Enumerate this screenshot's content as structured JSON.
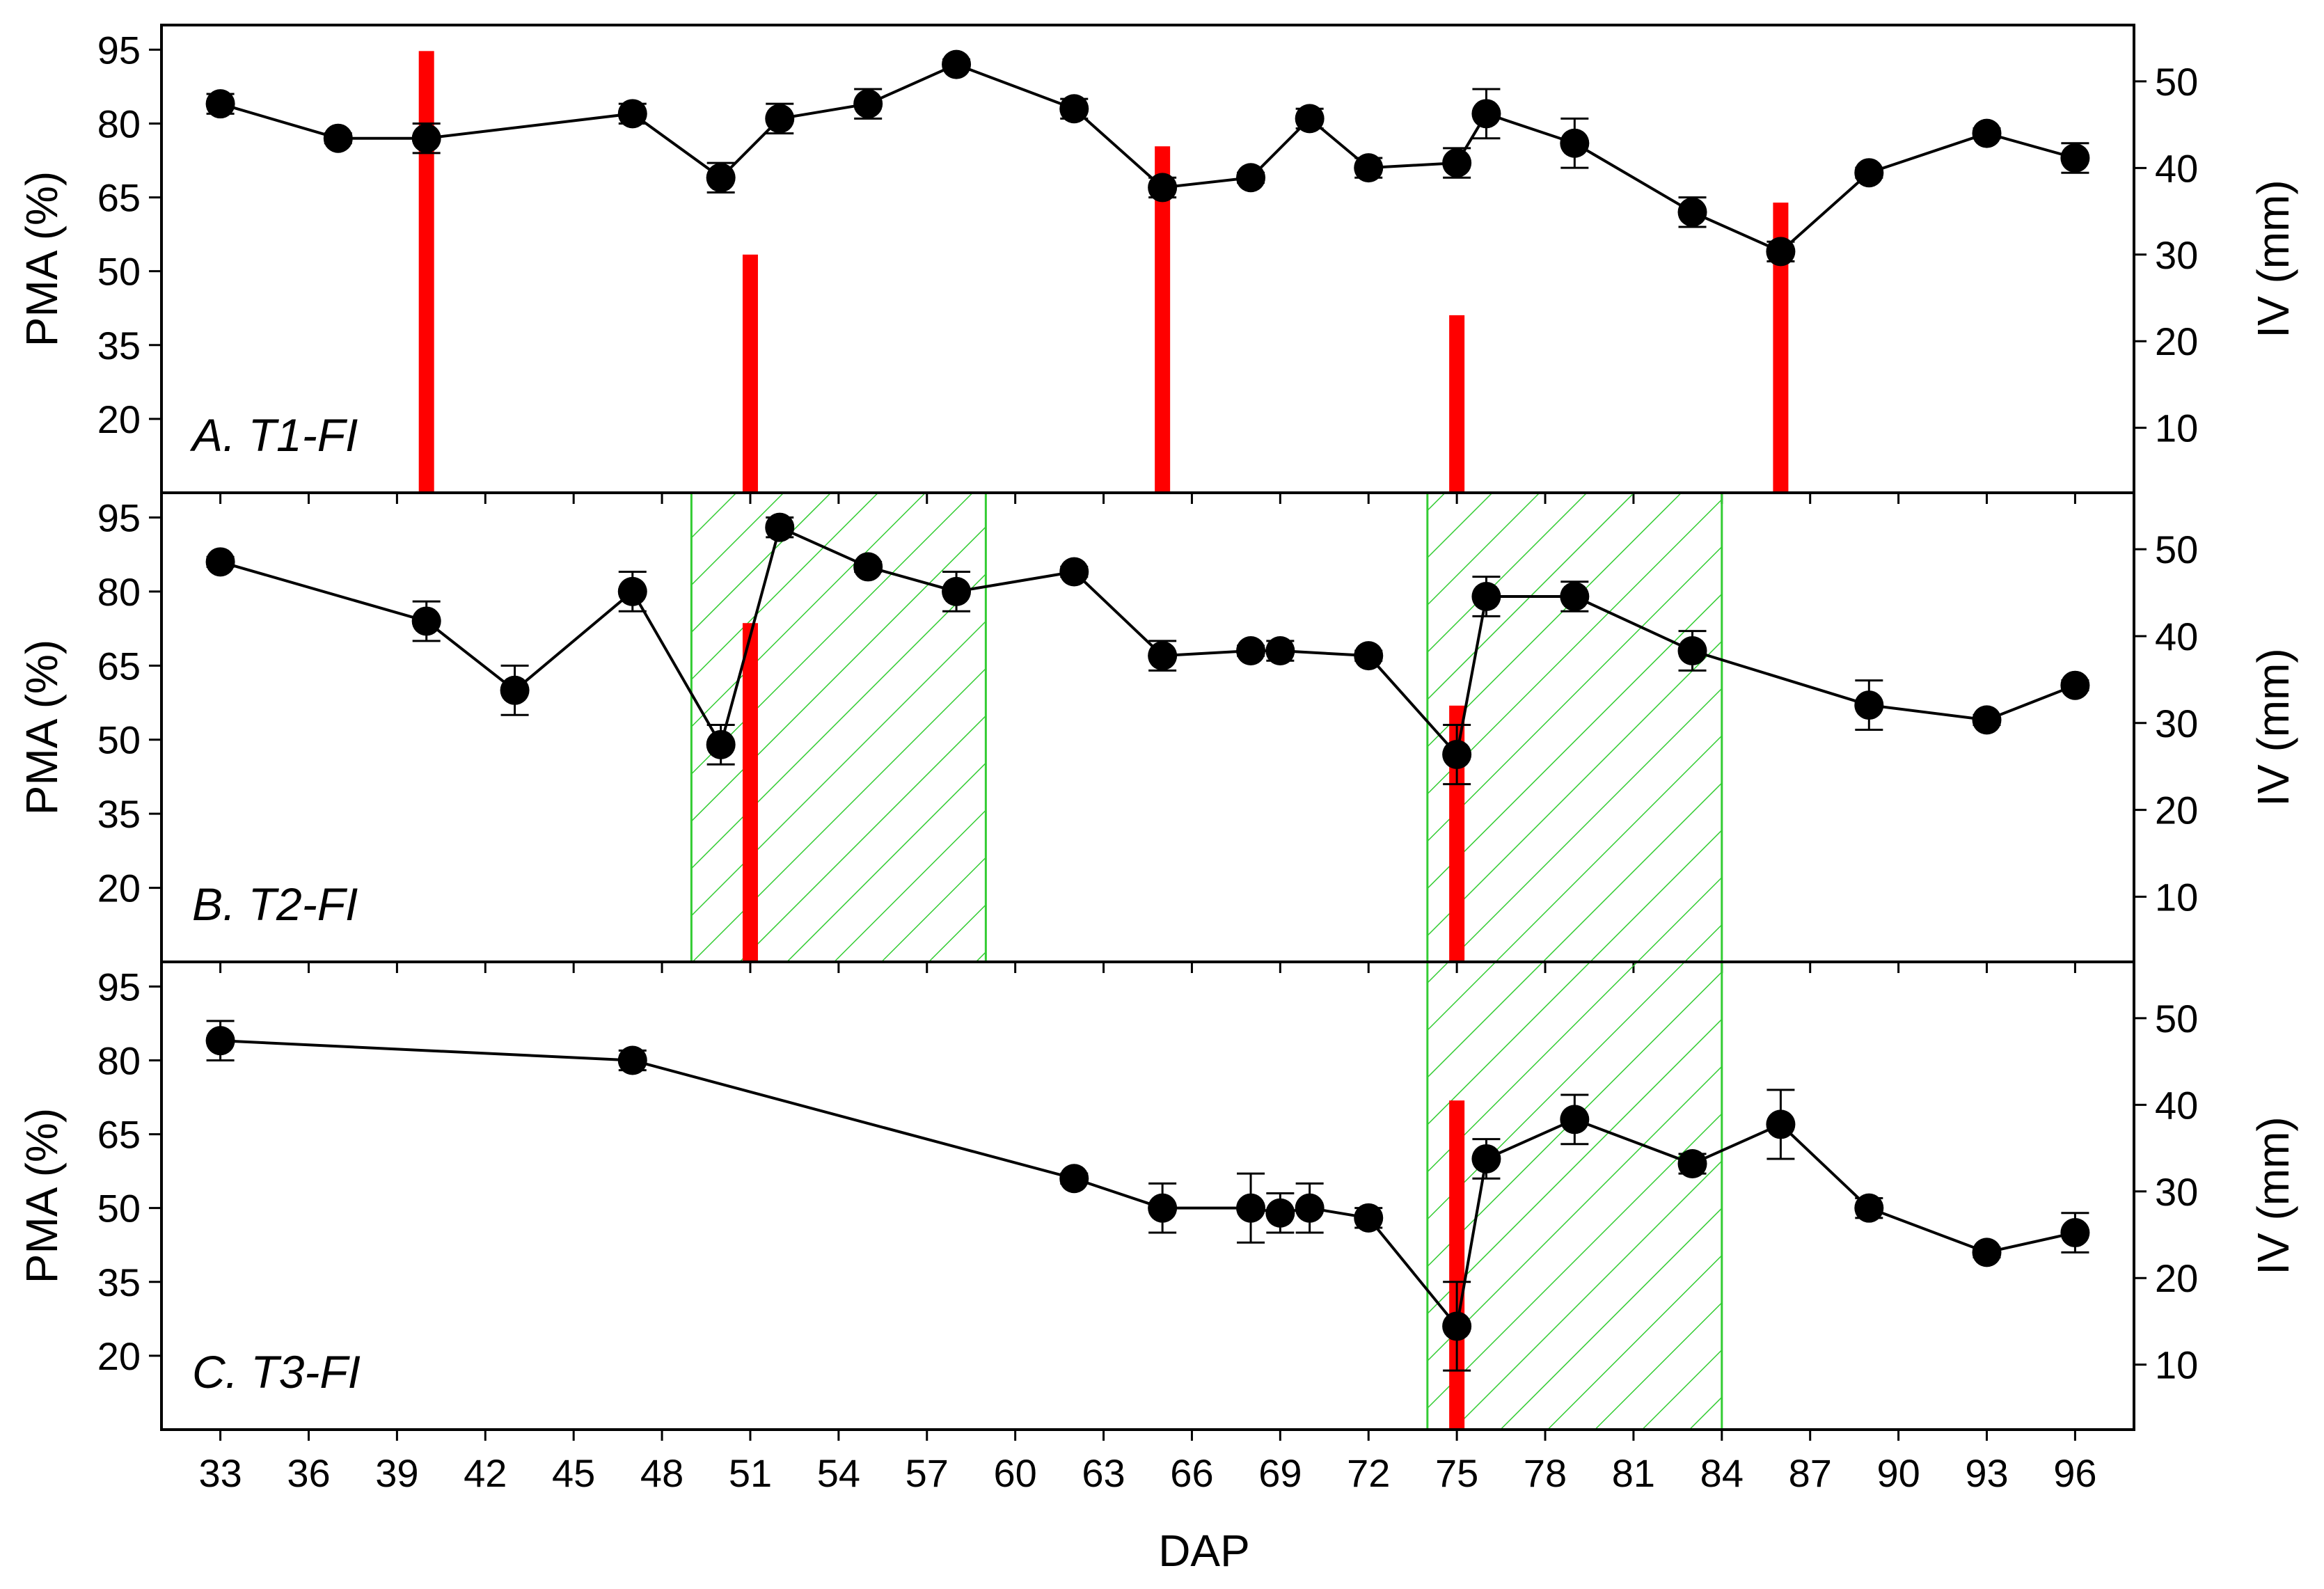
{
  "colors": {
    "bar": "#ff0000",
    "line": "#000000",
    "hatch": "#33cc33"
  },
  "chart_data": {
    "type": "line",
    "xlabel": "DAP",
    "xlim": [
      31,
      98
    ],
    "xticks": [
      33,
      36,
      39,
      42,
      45,
      48,
      51,
      54,
      57,
      60,
      63,
      66,
      69,
      72,
      75,
      78,
      81,
      84,
      87,
      90,
      93,
      96
    ],
    "xtick_labels": [
      "33",
      "36",
      "39",
      "42",
      "45",
      "48",
      "51",
      "54",
      "57",
      "60",
      "63",
      "66",
      "69",
      "72",
      "75",
      "78",
      "81",
      "84",
      "87",
      "90",
      "93",
      "96"
    ],
    "left_axis": {
      "label": "PMA (%)",
      "ylim": [
        5,
        100
      ],
      "ticks": [
        20,
        35,
        50,
        65,
        80,
        95
      ],
      "tick_labels": [
        "20",
        "35",
        "50",
        "65",
        "80",
        "95"
      ]
    },
    "right_axis": {
      "label": "IV (mm)",
      "ylim": [
        2.5,
        56.5
      ],
      "ticks": [
        10,
        20,
        30,
        40,
        50
      ],
      "tick_labels": [
        "10",
        "20",
        "30",
        "40",
        "50"
      ]
    },
    "panels": [
      {
        "label": "A. T1-FI",
        "pma": [
          {
            "x": 33,
            "y": 84,
            "err": 2
          },
          {
            "x": 37,
            "y": 77,
            "err": 1
          },
          {
            "x": 40,
            "y": 77,
            "err": 3
          },
          {
            "x": 47,
            "y": 82,
            "err": 2
          },
          {
            "x": 50,
            "y": 69,
            "err": 3
          },
          {
            "x": 52,
            "y": 81,
            "err": 3
          },
          {
            "x": 55,
            "y": 84,
            "err": 3
          },
          {
            "x": 58,
            "y": 92,
            "err": 1
          },
          {
            "x": 62,
            "y": 83,
            "err": 2
          },
          {
            "x": 65,
            "y": 67,
            "err": 2
          },
          {
            "x": 68,
            "y": 69,
            "err": 1
          },
          {
            "x": 70,
            "y": 81,
            "err": 2
          },
          {
            "x": 72,
            "y": 71,
            "err": 2
          },
          {
            "x": 75,
            "y": 72,
            "err": 3
          },
          {
            "x": 76,
            "y": 82,
            "err": 5
          },
          {
            "x": 79,
            "y": 76,
            "err": 5
          },
          {
            "x": 83,
            "y": 62,
            "err": 3
          },
          {
            "x": 86,
            "y": 54,
            "err": 2
          },
          {
            "x": 89,
            "y": 70,
            "err": 1
          },
          {
            "x": 93,
            "y": 78,
            "err": 1
          },
          {
            "x": 96,
            "y": 73,
            "err": 3
          }
        ],
        "iv": [
          {
            "x": 40,
            "y": 53.5
          },
          {
            "x": 51,
            "y": 30
          },
          {
            "x": 65,
            "y": 42.5
          },
          {
            "x": 75,
            "y": 23
          },
          {
            "x": 86,
            "y": 36
          }
        ],
        "shaded": []
      },
      {
        "label": "B. T2-FI",
        "pma": [
          {
            "x": 33,
            "y": 86,
            "err": 1
          },
          {
            "x": 40,
            "y": 74,
            "err": 4
          },
          {
            "x": 43,
            "y": 60,
            "err": 5
          },
          {
            "x": 47,
            "y": 80,
            "err": 4
          },
          {
            "x": 50,
            "y": 49,
            "err": 4
          },
          {
            "x": 52,
            "y": 93,
            "err": 2
          },
          {
            "x": 55,
            "y": 85,
            "err": 1
          },
          {
            "x": 58,
            "y": 80,
            "err": 4
          },
          {
            "x": 62,
            "y": 84,
            "err": 1
          },
          {
            "x": 65,
            "y": 67,
            "err": 3
          },
          {
            "x": 68,
            "y": 68,
            "err": 1
          },
          {
            "x": 69,
            "y": 68,
            "err": 2
          },
          {
            "x": 72,
            "y": 67,
            "err": 1
          },
          {
            "x": 75,
            "y": 47,
            "err": 6
          },
          {
            "x": 76,
            "y": 79,
            "err": 4
          },
          {
            "x": 79,
            "y": 79,
            "err": 3
          },
          {
            "x": 83,
            "y": 68,
            "err": 4
          },
          {
            "x": 89,
            "y": 57,
            "err": 5
          },
          {
            "x": 93,
            "y": 54,
            "err": 1
          },
          {
            "x": 96,
            "y": 61,
            "err": 1
          }
        ],
        "iv": [
          {
            "x": 51,
            "y": 41.5
          },
          {
            "x": 75,
            "y": 32
          }
        ],
        "shaded": [
          [
            49,
            59
          ],
          [
            74,
            84
          ]
        ]
      },
      {
        "label": "C. T3-FI",
        "pma": [
          {
            "x": 33,
            "y": 84,
            "err": 4
          },
          {
            "x": 47,
            "y": 80,
            "err": 2
          },
          {
            "x": 62,
            "y": 56,
            "err": 1
          },
          {
            "x": 65,
            "y": 50,
            "err": 5
          },
          {
            "x": 68,
            "y": 50,
            "err": 7
          },
          {
            "x": 69,
            "y": 49,
            "err": 4
          },
          {
            "x": 70,
            "y": 50,
            "err": 5
          },
          {
            "x": 72,
            "y": 48,
            "err": 2
          },
          {
            "x": 75,
            "y": 26,
            "err": 9
          },
          {
            "x": 76,
            "y": 60,
            "err": 4
          },
          {
            "x": 79,
            "y": 68,
            "err": 5
          },
          {
            "x": 83,
            "y": 59,
            "err": 2
          },
          {
            "x": 86,
            "y": 67,
            "err": 7
          },
          {
            "x": 89,
            "y": 50,
            "err": 2
          },
          {
            "x": 93,
            "y": 41,
            "err": 1
          },
          {
            "x": 96,
            "y": 45,
            "err": 4
          }
        ],
        "iv": [
          {
            "x": 75,
            "y": 40.5
          }
        ],
        "shaded": [
          [
            74,
            84
          ]
        ]
      }
    ]
  }
}
